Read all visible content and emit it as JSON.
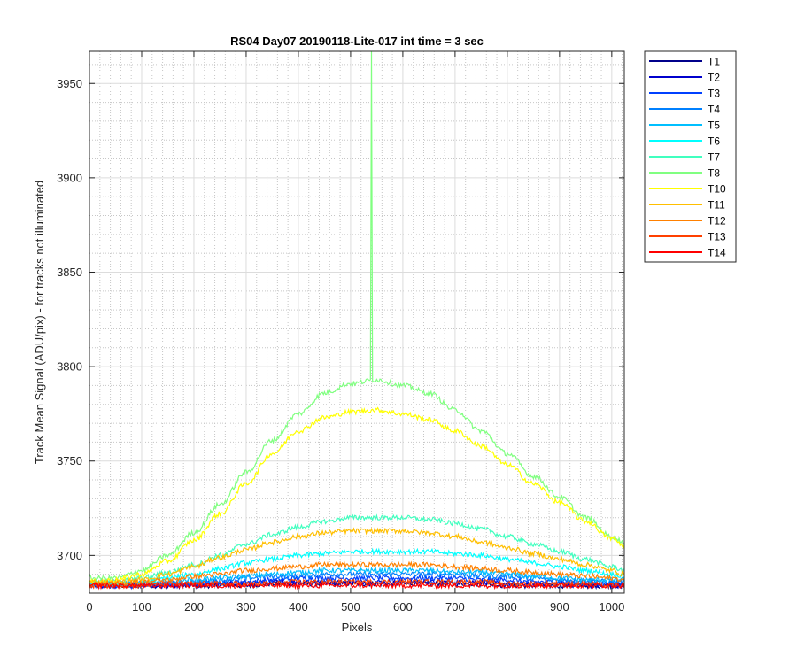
{
  "chart_data": {
    "type": "line",
    "title": "RS04 Day07 20190118-Lite-017 int time = 3 sec",
    "xlabel": "Pixels",
    "ylabel": "Track Mean Signal (ADU/pix) - for tracks not illuminated",
    "xlim": [
      0,
      1024
    ],
    "ylim": [
      3680,
      3967
    ],
    "xticks": [
      0,
      100,
      200,
      300,
      400,
      500,
      600,
      700,
      800,
      900,
      1000
    ],
    "yticks": [
      3700,
      3750,
      3800,
      3850,
      3900,
      3950
    ],
    "x_tick_labels": [
      "0",
      "100",
      "200",
      "300",
      "400",
      "500",
      "600",
      "700",
      "800",
      "900",
      "1000"
    ],
    "y_tick_labels": [
      "3700",
      "3750",
      "3800",
      "3850",
      "3900",
      "3950"
    ],
    "grid": "on",
    "minor_grid": "on",
    "legend_position": "outside-top-right",
    "x": [
      0,
      50,
      100,
      150,
      200,
      250,
      300,
      350,
      400,
      450,
      500,
      550,
      600,
      650,
      700,
      750,
      800,
      850,
      900,
      950,
      1000,
      1024
    ],
    "series": [
      {
        "name": "T1",
        "color": "#00008b",
        "values": [
          3684,
          3684,
          3684,
          3684,
          3684,
          3684,
          3684,
          3685,
          3685,
          3685,
          3685,
          3685,
          3685,
          3685,
          3685,
          3685,
          3684,
          3684,
          3684,
          3684,
          3684,
          3684
        ]
      },
      {
        "name": "T2",
        "color": "#0000cd",
        "values": [
          3684,
          3684,
          3684,
          3684,
          3684,
          3685,
          3685,
          3686,
          3686,
          3686,
          3686,
          3686,
          3686,
          3686,
          3686,
          3686,
          3685,
          3685,
          3685,
          3684,
          3684,
          3684
        ]
      },
      {
        "name": "T3",
        "color": "#0040ff",
        "values": [
          3684,
          3684,
          3684,
          3685,
          3685,
          3686,
          3686,
          3687,
          3688,
          3688,
          3688,
          3688,
          3688,
          3688,
          3688,
          3687,
          3687,
          3686,
          3686,
          3685,
          3685,
          3685
        ]
      },
      {
        "name": "T4",
        "color": "#0080ff",
        "values": [
          3685,
          3685,
          3685,
          3685,
          3686,
          3687,
          3688,
          3689,
          3689,
          3690,
          3690,
          3690,
          3690,
          3690,
          3690,
          3689,
          3689,
          3688,
          3687,
          3687,
          3686,
          3686
        ]
      },
      {
        "name": "T5",
        "color": "#00bfff",
        "values": [
          3685,
          3685,
          3685,
          3686,
          3687,
          3688,
          3689,
          3690,
          3691,
          3692,
          3692,
          3692,
          3692,
          3692,
          3691,
          3691,
          3690,
          3689,
          3688,
          3687,
          3687,
          3687
        ]
      },
      {
        "name": "T6",
        "color": "#00ffff",
        "values": [
          3685,
          3685,
          3686,
          3688,
          3690,
          3693,
          3696,
          3698,
          3700,
          3701,
          3702,
          3702,
          3702,
          3702,
          3701,
          3700,
          3698,
          3696,
          3694,
          3692,
          3690,
          3689
        ]
      },
      {
        "name": "T7",
        "color": "#40ffbf",
        "values": [
          3686,
          3686,
          3688,
          3691,
          3695,
          3700,
          3706,
          3711,
          3715,
          3718,
          3720,
          3720,
          3720,
          3719,
          3717,
          3714,
          3710,
          3706,
          3702,
          3698,
          3694,
          3692
        ]
      },
      {
        "name": "T8",
        "color": "#80ff80",
        "values": [
          3688,
          3688,
          3692,
          3700,
          3712,
          3727,
          3744,
          3761,
          3775,
          3786,
          3791,
          3793,
          3790,
          3786,
          3777,
          3766,
          3754,
          3742,
          3731,
          3720,
          3710,
          3707
        ]
      },
      {
        "name": "T10",
        "color": "#ffff00",
        "values": [
          3686,
          3687,
          3690,
          3697,
          3708,
          3722,
          3738,
          3754,
          3766,
          3773,
          3776,
          3777,
          3775,
          3772,
          3766,
          3758,
          3748,
          3738,
          3728,
          3718,
          3709,
          3705
        ]
      },
      {
        "name": "T11",
        "color": "#ffbf00",
        "values": [
          3686,
          3686,
          3687,
          3690,
          3694,
          3699,
          3703,
          3707,
          3710,
          3712,
          3713,
          3713,
          3713,
          3712,
          3710,
          3707,
          3704,
          3701,
          3698,
          3695,
          3692,
          3690
        ]
      },
      {
        "name": "T12",
        "color": "#ff8000",
        "values": [
          3685,
          3685,
          3686,
          3687,
          3689,
          3690,
          3692,
          3693,
          3694,
          3695,
          3695,
          3695,
          3695,
          3695,
          3694,
          3693,
          3692,
          3691,
          3690,
          3689,
          3688,
          3687
        ]
      },
      {
        "name": "T13",
        "color": "#ff4000",
        "values": [
          3684,
          3684,
          3684,
          3685,
          3685,
          3685,
          3685,
          3685,
          3686,
          3686,
          3686,
          3686,
          3686,
          3686,
          3686,
          3686,
          3685,
          3685,
          3685,
          3685,
          3684,
          3684
        ]
      },
      {
        "name": "T14",
        "color": "#ff0000",
        "values": [
          3684,
          3684,
          3684,
          3684,
          3684,
          3684,
          3684,
          3684,
          3684,
          3684,
          3684,
          3684,
          3684,
          3684,
          3684,
          3684,
          3684,
          3684,
          3684,
          3684,
          3684,
          3684
        ]
      }
    ],
    "annotations": [
      {
        "series": "T8",
        "type": "spike",
        "x": 540,
        "y": 3967
      }
    ]
  },
  "colors": {
    "axes_line": "#262626",
    "grid_major": "#dcdcdc",
    "grid_minor": "#c6c6c6"
  }
}
